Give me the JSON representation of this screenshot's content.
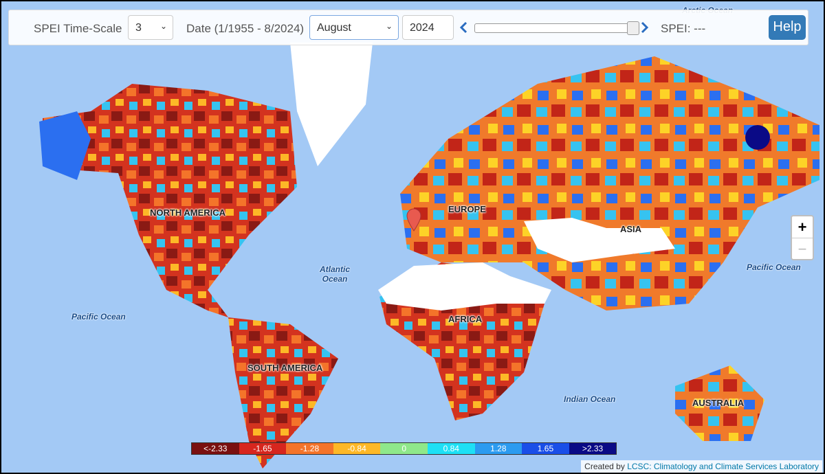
{
  "controls": {
    "timescale_label": "SPEI Time-Scale",
    "timescale_value": "3",
    "date_label": "Date (1/1955 - 8/2024)",
    "month": "August",
    "year": "2024",
    "spei_readout": "SPEI: ---",
    "help": "Help"
  },
  "map": {
    "labels": {
      "arctic": "Arctic Ocean",
      "north_america": "NORTH AMERICA",
      "europe": "EUROPE",
      "asia": "ASIA",
      "africa": "AFRICA",
      "south_america": "SOUTH AMERICA",
      "australia": "AUSTRALIA",
      "atlantic": "Atlantic Ocean",
      "pacific_west": "Pacific Ocean",
      "pacific_east": "Pacific Ocean",
      "indian": "Indian Ocean"
    },
    "zoom_in": "+",
    "zoom_out": "−"
  },
  "legend": [
    {
      "label": "<-2.33",
      "color": "#7a1010"
    },
    {
      "label": "-1.65",
      "color": "#d7261e"
    },
    {
      "label": "-1.28",
      "color": "#f4742a"
    },
    {
      "label": "-0.84",
      "color": "#fdb827"
    },
    {
      "label": "0",
      "color": "#8fe88a"
    },
    {
      "label": "0.84",
      "color": "#1ee0f5"
    },
    {
      "label": "1.28",
      "color": "#2b9bf0"
    },
    {
      "label": "1.65",
      "color": "#1a4ee8"
    },
    {
      "label": ">2.33",
      "color": "#0a0a86"
    }
  ],
  "attribution": {
    "prefix": "Created by",
    "link": "LCSC: Climatology and Climate Services Laboratory"
  }
}
